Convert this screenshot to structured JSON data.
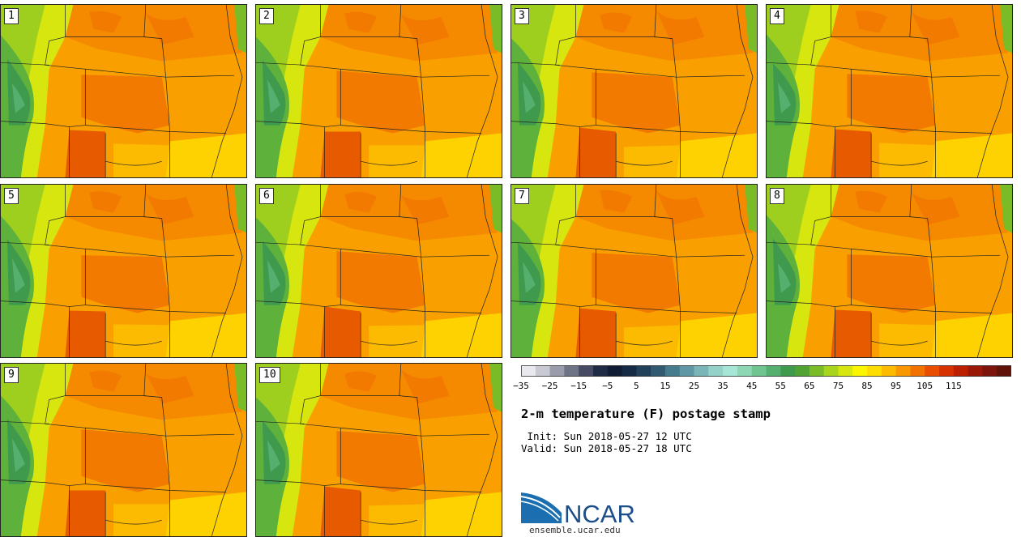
{
  "panels": [
    {
      "label": "1"
    },
    {
      "label": "2"
    },
    {
      "label": "3"
    },
    {
      "label": "4"
    },
    {
      "label": "5"
    },
    {
      "label": "6"
    },
    {
      "label": "7"
    },
    {
      "label": "8"
    },
    {
      "label": "9"
    },
    {
      "label": "10"
    }
  ],
  "colorbar": {
    "colors": [
      "#e8e8ee",
      "#c8c9d2",
      "#9a9cac",
      "#6f7386",
      "#464b63",
      "#1f2a44",
      "#0f1c33",
      "#152a45",
      "#22405a",
      "#315a72",
      "#467a8d",
      "#5f97a5",
      "#7ab5b7",
      "#94d2c9",
      "#a6e6d6",
      "#8dd7b4",
      "#6fc490",
      "#55b06f",
      "#3f9a4d",
      "#50a333",
      "#79bc27",
      "#a8d41c",
      "#d6e70f",
      "#fbf500",
      "#fddc00",
      "#fcba00",
      "#f99700",
      "#f27200",
      "#e84d00",
      "#d63100",
      "#bb2100",
      "#9a1807",
      "#7b140a",
      "#5f1208"
    ],
    "ticks": [
      "−35",
      "−25",
      "−15",
      "−5",
      "5",
      "15",
      "25",
      "35",
      "45",
      "55",
      "65",
      "75",
      "85",
      "95",
      "105",
      "115"
    ]
  },
  "title": "2-m temperature (F) postage stamp",
  "init": " Init: Sun 2018-05-27 12 UTC",
  "valid": "Valid: Sun 2018-05-27 18 UTC",
  "logo": {
    "text": "NCAR",
    "url": "ensemble.ucar.edu"
  },
  "icons": {
    "logo": "ncar-logo-icon"
  }
}
